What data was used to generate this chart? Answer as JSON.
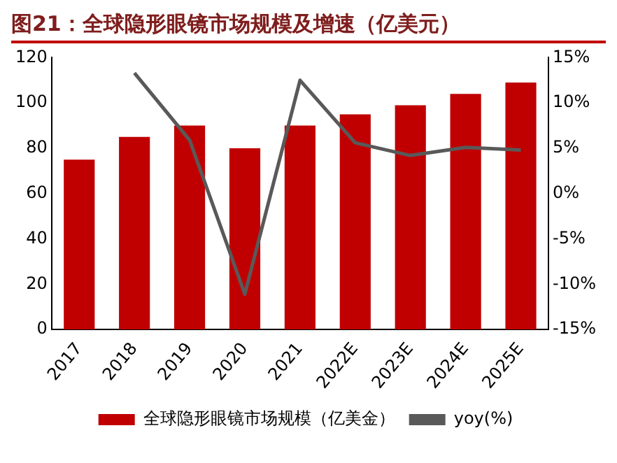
{
  "chart_data": {
    "type": "bar",
    "title": "图21：全球隐形眼镜市场规模及增速（亿美元）",
    "categories": [
      "2017",
      "2018",
      "2019",
      "2020",
      "2021",
      "2022E",
      "2023E",
      "2024E",
      "2025E"
    ],
    "series": [
      {
        "name": "全球隐形眼镜市场规模（亿美金）",
        "color": "#c00000",
        "values": [
          75,
          85,
          90,
          80,
          90,
          95,
          99,
          104,
          109
        ]
      },
      {
        "name": "yoy(%)",
        "type": "line",
        "axis": "y2",
        "color": "#595959",
        "values": [
          null,
          13.3,
          5.9,
          -11.1,
          12.5,
          5.6,
          4.2,
          5.1,
          4.8
        ]
      }
    ],
    "ylim": [
      0,
      120
    ],
    "yticks": [
      0,
      20,
      40,
      60,
      80,
      100,
      120
    ],
    "y2lim": [
      -15,
      15
    ],
    "y2ticks": [
      {
        "value": -15,
        "label": "-15%"
      },
      {
        "value": -10,
        "label": "-10%"
      },
      {
        "value": -5,
        "label": "-5%"
      },
      {
        "value": 0,
        "label": "0%"
      },
      {
        "value": 5,
        "label": "5%"
      },
      {
        "value": 10,
        "label": "10%"
      },
      {
        "value": 15,
        "label": "15%"
      }
    ],
    "grid": false,
    "legend": "bottom",
    "marker": "none",
    "line_style": "solid"
  }
}
